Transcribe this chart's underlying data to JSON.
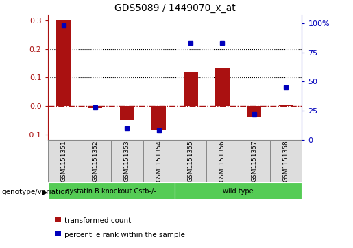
{
  "title": "GDS5089 / 1449070_x_at",
  "samples": [
    "GSM1151351",
    "GSM1151352",
    "GSM1151353",
    "GSM1151354",
    "GSM1151355",
    "GSM1151356",
    "GSM1151357",
    "GSM1151358"
  ],
  "transformed_count": [
    0.3,
    -0.008,
    -0.05,
    -0.085,
    0.12,
    0.135,
    -0.038,
    0.004
  ],
  "percentile_rank_pct": [
    98,
    28,
    10,
    8,
    83,
    83,
    22,
    45
  ],
  "bar_color": "#AA1111",
  "dot_color": "#0000BB",
  "zero_line_color": "#AA1111",
  "ylim_left": [
    -0.12,
    0.32
  ],
  "ylim_right": [
    0,
    107
  ],
  "yticks_left": [
    -0.1,
    0.0,
    0.1,
    0.2,
    0.3
  ],
  "yticks_right": [
    0,
    25,
    50,
    75,
    100
  ],
  "group1_label": "cystatin B knockout Cstb-/-",
  "group2_label": "wild type",
  "group_color": "#55CC55",
  "label_genotype": "genotype/variation",
  "legend_bar": "transformed count",
  "legend_dot": "percentile rank within the sample",
  "sample_bg": "#DDDDDD",
  "plot_bg": "#FFFFFF",
  "fig_bg": "#FFFFFF"
}
